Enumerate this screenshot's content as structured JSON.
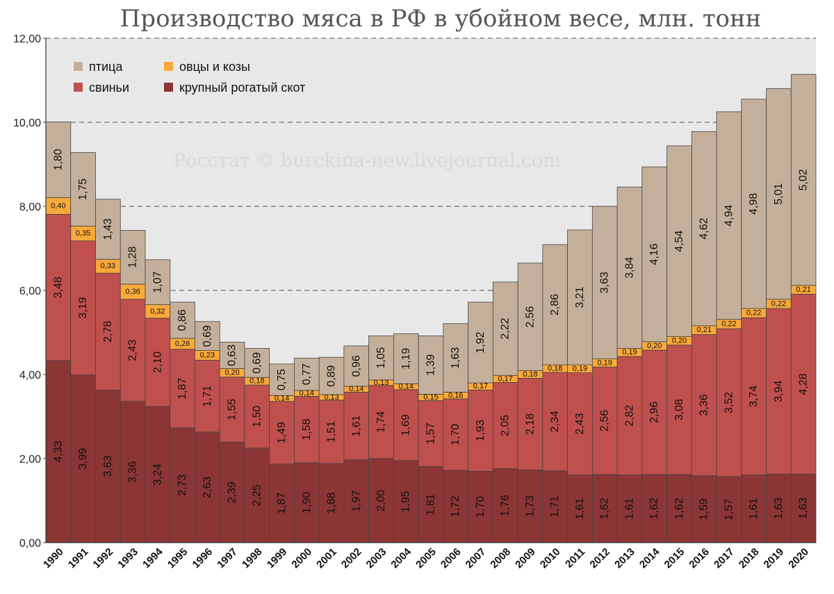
{
  "chart_data": {
    "type": "bar",
    "stacked": true,
    "title": "Производство мяса в РФ в убойном весе, млн. тонн",
    "watermark": "Росстат © burckina-new.livejournal.com",
    "ylim": [
      0,
      12
    ],
    "y_ticks": [
      "0,00",
      "2,00",
      "4,00",
      "6,00",
      "8,00",
      "10,00",
      "12,00"
    ],
    "grid": true,
    "legend_position": "top-left",
    "categories": [
      "1990",
      "1991",
      "1992",
      "1993",
      "1994",
      "1995",
      "1996",
      "1997",
      "1998",
      "1999",
      "2000",
      "2001",
      "2002",
      "2003",
      "2004",
      "2005",
      "2006",
      "2007",
      "2008",
      "2009",
      "2010",
      "2011",
      "2012",
      "2013",
      "2014",
      "2015",
      "2016",
      "2017",
      "2018",
      "2019",
      "2020"
    ],
    "series": [
      {
        "name": "крупный рогатый скот",
        "color": "#8b3535",
        "values": [
          4.33,
          3.99,
          3.63,
          3.36,
          3.24,
          2.73,
          2.63,
          2.39,
          2.25,
          1.87,
          1.9,
          1.88,
          1.97,
          2.0,
          1.95,
          1.81,
          1.72,
          1.7,
          1.76,
          1.73,
          1.71,
          1.61,
          1.62,
          1.61,
          1.62,
          1.62,
          1.59,
          1.57,
          1.61,
          1.63,
          1.63
        ],
        "labels": [
          "4,33",
          "3,99",
          "3,63",
          "3,36",
          "3,24",
          "2,73",
          "2,63",
          "2,39",
          "2,25",
          "1,87",
          "1,90",
          "1,88",
          "1,97",
          "2,00",
          "1,95",
          "1,81",
          "1,72",
          "1,70",
          "1,76",
          "1,73",
          "1,71",
          "1,61",
          "1,62",
          "1,61",
          "1,62",
          "1,62",
          "1,59",
          "1,57",
          "1,61",
          "1,63",
          "1,63"
        ]
      },
      {
        "name": "свиньи",
        "color": "#c0504d",
        "values": [
          3.48,
          3.19,
          2.78,
          2.43,
          2.1,
          1.87,
          1.71,
          1.55,
          1.5,
          1.49,
          1.58,
          1.51,
          1.61,
          1.74,
          1.69,
          1.57,
          1.7,
          1.93,
          2.05,
          2.18,
          2.34,
          2.43,
          2.56,
          2.82,
          2.96,
          3.08,
          3.36,
          3.52,
          3.74,
          3.94,
          4.28
        ],
        "labels": [
          "3,48",
          "3,19",
          "2,78",
          "2,43",
          "2,10",
          "1,87",
          "1,71",
          "1,55",
          "1,50",
          "1,49",
          "1,58",
          "1,51",
          "1,61",
          "1,74",
          "1,69",
          "1,57",
          "1,70",
          "1,93",
          "2,05",
          "2,18",
          "2,34",
          "2,43",
          "2,56",
          "2,82",
          "2,96",
          "3,08",
          "3,36",
          "3,52",
          "3,74",
          "3,94",
          "4,28"
        ]
      },
      {
        "name": "овцы и козы",
        "color": "#f9a93a",
        "values": [
          0.4,
          0.35,
          0.33,
          0.36,
          0.32,
          0.26,
          0.23,
          0.2,
          0.18,
          0.14,
          0.14,
          0.13,
          0.14,
          0.13,
          0.14,
          0.15,
          0.16,
          0.17,
          0.17,
          0.18,
          0.18,
          0.19,
          0.19,
          0.19,
          0.2,
          0.2,
          0.21,
          0.22,
          0.22,
          0.22,
          0.21
        ],
        "labels": [
          "0,40",
          "0,35",
          "0,33",
          "0,36",
          "0,32",
          "0,26",
          "0,23",
          "0,20",
          "0,18",
          "0,14",
          "0,14",
          "0,13",
          "0,14",
          "0,13",
          "0,14",
          "0,15",
          "0,16",
          "0,17",
          "0,17",
          "0,18",
          "0,18",
          "0,19",
          "0,19",
          "0,19",
          "0,20",
          "0,20",
          "0,21",
          "0,22",
          "0,22",
          "0,22",
          "0,21"
        ]
      },
      {
        "name": "птица",
        "color": "#c4b09a",
        "values": [
          1.8,
          1.75,
          1.43,
          1.28,
          1.07,
          0.86,
          0.69,
          0.63,
          0.69,
          0.75,
          0.77,
          0.89,
          0.96,
          1.05,
          1.19,
          1.39,
          1.63,
          1.92,
          2.22,
          2.56,
          2.86,
          3.21,
          3.63,
          3.84,
          4.16,
          4.54,
          4.62,
          4.94,
          4.98,
          5.01,
          5.02
        ],
        "labels": [
          "1,80",
          "1,75",
          "1,43",
          "1,28",
          "1,07",
          "0,86",
          "0,69",
          "0,63",
          "0,69",
          "0,75",
          "0,77",
          "0,89",
          "0,96",
          "1,05",
          "1,19",
          "1,39",
          "1,63",
          "1,92",
          "2,22",
          "2,56",
          "2,86",
          "3,21",
          "3,63",
          "3,84",
          "4,16",
          "4,54",
          "4,62",
          "4,94",
          "4,98",
          "5,01",
          "5,02"
        ]
      }
    ],
    "legend": [
      {
        "name": "птица",
        "color": "#c4b09a"
      },
      {
        "name": "овцы и козы",
        "color": "#f9a93a"
      },
      {
        "name": "свиньи",
        "color": "#c0504d"
      },
      {
        "name": "крупный рогатый скот",
        "color": "#8b3535"
      }
    ],
    "colors": {
      "plot_background": "#e8e8e8",
      "gridline": "#555555",
      "bar_outline": "#444444"
    }
  }
}
